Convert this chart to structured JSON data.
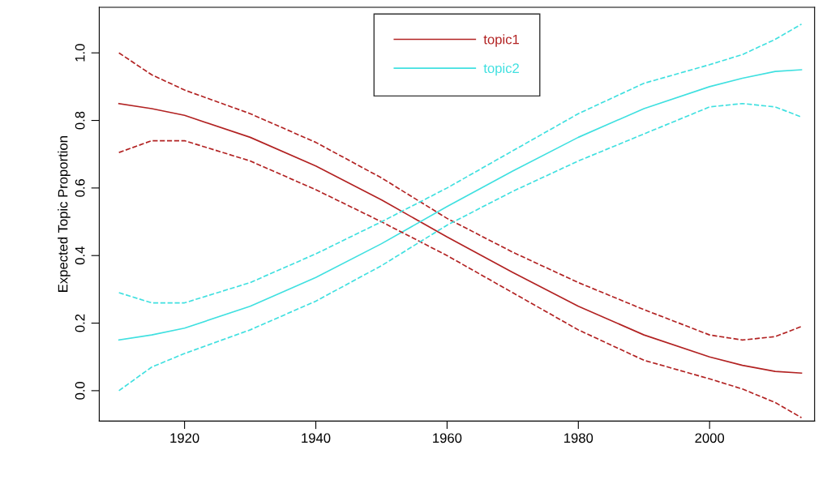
{
  "chart_data": {
    "type": "line",
    "ylabel": "Expected Topic Proportion",
    "x": [
      1910,
      1915,
      1920,
      1930,
      1940,
      1950,
      1960,
      1970,
      1980,
      1990,
      2000,
      2005,
      2010,
      2014
    ],
    "series": [
      {
        "name": "topic1",
        "color": "#b22222",
        "values": [
          0.85,
          0.835,
          0.815,
          0.75,
          0.665,
          0.565,
          0.455,
          0.35,
          0.25,
          0.165,
          0.1,
          0.075,
          0.057,
          0.052
        ]
      },
      {
        "name": "topic2",
        "color": "#40e0e0",
        "values": [
          0.15,
          0.165,
          0.185,
          0.25,
          0.335,
          0.435,
          0.545,
          0.65,
          0.75,
          0.835,
          0.9,
          0.925,
          0.945,
          0.95
        ]
      },
      {
        "color": "#b22222",
        "line_style": "dashed",
        "values": [
          1.0,
          0.935,
          0.89,
          0.82,
          0.735,
          0.63,
          0.51,
          0.41,
          0.32,
          0.24,
          0.165,
          0.15,
          0.16,
          0.19
        ]
      },
      {
        "color": "#b22222",
        "line_style": "dashed",
        "values": [
          0.705,
          0.74,
          0.74,
          0.68,
          0.595,
          0.5,
          0.4,
          0.29,
          0.18,
          0.09,
          0.035,
          0.005,
          -0.035,
          -0.08
        ]
      },
      {
        "color": "#40e0e0",
        "line_style": "dashed",
        "values": [
          0.29,
          0.26,
          0.26,
          0.32,
          0.405,
          0.5,
          0.6,
          0.71,
          0.82,
          0.91,
          0.965,
          0.995,
          1.04,
          1.085
        ]
      },
      {
        "color": "#40e0e0",
        "line_style": "dashed",
        "values": [
          0.0,
          0.07,
          0.11,
          0.18,
          0.265,
          0.37,
          0.49,
          0.59,
          0.68,
          0.76,
          0.84,
          0.85,
          0.84,
          0.81
        ]
      }
    ],
    "xlim": [
      1907,
      2016
    ],
    "ylim": [
      -0.09,
      1.135
    ],
    "xticks": [
      1920,
      1940,
      1960,
      1980,
      2000
    ],
    "yticks": [
      {
        "value": 0,
        "label": "0.0"
      },
      {
        "value": 0.2,
        "label": "0.2"
      },
      {
        "value": 0.4,
        "label": "0.4"
      },
      {
        "value": 0.6,
        "label": "0.6"
      },
      {
        "value": 0.8,
        "label": "0.8"
      },
      {
        "value": 1,
        "label": "1.0"
      }
    ],
    "legend": "top",
    "line_style": "solid",
    "grid": false
  }
}
